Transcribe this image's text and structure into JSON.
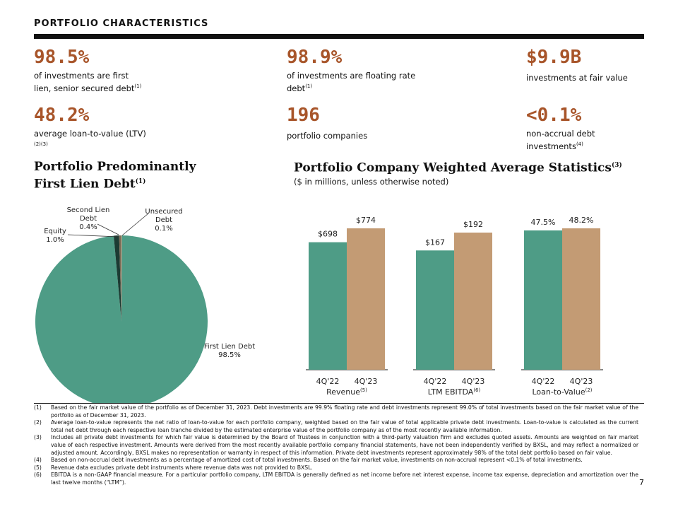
{
  "header": {
    "title": "PORTFOLIO CHARACTERISTICS"
  },
  "stats": [
    {
      "value": "98.5%",
      "desc": "of investments are first lien, senior secured debt",
      "sup": "(1)"
    },
    {
      "value": "98.9%",
      "desc": "of investments are floating rate debt",
      "sup": "(1)"
    },
    {
      "value": "$9.9B",
      "desc": "investments at fair value",
      "sup": ""
    },
    {
      "value": "48.2%",
      "desc": "average loan-to-value (LTV)",
      "sup": "(2)(3)"
    },
    {
      "value": "196",
      "desc": "portfolio companies",
      "sup": ""
    },
    {
      "value": "<0.1%",
      "desc": "non-accrual debt investments",
      "sup": "(4)"
    }
  ],
  "left_section": {
    "title_line1": "Portfolio Predominantly",
    "title_line2": "First Lien Debt",
    "sup": "(1)"
  },
  "right_section": {
    "title": "Portfolio Company Weighted Average Statistics",
    "sup": "(3)",
    "subtitle": "($ in millions, unless otherwise noted)"
  },
  "chart_data": [
    {
      "type": "pie",
      "slices": [
        {
          "label": "First Lien Debt",
          "value_label": "98.5%",
          "value": 98.5,
          "color": "#4e9c86"
        },
        {
          "label": "Equity",
          "value_label": "1.0%",
          "value": 1.0,
          "color": "#1c3b33"
        },
        {
          "label": "Second Lien Debt",
          "value_label": "0.4%",
          "value": 0.4,
          "color": "#7a6a55"
        },
        {
          "label": "Unsecured Debt",
          "value_label": "0.1%",
          "value": 0.1,
          "color": "#c9a37f"
        }
      ]
    },
    {
      "type": "bar",
      "categories": [
        "4Q'22",
        "4Q'23"
      ],
      "groups": [
        {
          "name": "Revenue",
          "sup": "(5)",
          "values": [
            698,
            774
          ],
          "labels": [
            "$698",
            "$774"
          ]
        },
        {
          "name": "LTM EBITDA",
          "sup": "(6)",
          "values": [
            167,
            192
          ],
          "labels": [
            "$167",
            "$192"
          ]
        },
        {
          "name": "Loan-to-Value",
          "sup": "(2)",
          "values": [
            47.5,
            48.2
          ],
          "labels": [
            "47.5%",
            "48.2%"
          ]
        }
      ],
      "colors": [
        "#4e9c86",
        "#c39b74"
      ]
    }
  ],
  "footnotes": [
    {
      "num": "(1)",
      "text": "Based on the fair market value of the portfolio as of December 31, 2023. Debt investments are 99.9% floating rate and debt investments represent 99.0% of total investments based on the fair market value of the portfolio as of December 31, 2023."
    },
    {
      "num": "(2)",
      "text": "Average loan-to-value represents the net ratio of loan-to-value for each portfolio company, weighted based on the fair value of total applicable private debt investments. Loan-to-value is calculated as the current total net debt through each respective loan tranche divided by the estimated enterprise value of the portfolio company as of the most recently available information."
    },
    {
      "num": "(3)",
      "text": "Includes all private debt investments for which fair value is determined by the Board of Trustees in conjunction with a third-party valuation firm and excludes quoted assets. Amounts are weighted on fair market value of each respective investment. Amounts were derived from the most recently available portfolio company financial statements, have not been independently verified by BXSL, and may reflect a normalized or adjusted amount. Accordingly, BXSL makes no representation or warranty in respect of this information. Private debt investments represent approximately 98% of the total debt portfolio based on fair value."
    },
    {
      "num": "(4)",
      "text": "Based on non-accrual debt investments as a percentage of amortized cost of total investments. Based on the fair market value, investments on non-accrual represent <0.1% of total investments."
    },
    {
      "num": "(5)",
      "text": "Revenue data excludes private debt instruments where revenue data was not provided to BXSL."
    },
    {
      "num": "(6)",
      "text": "EBITDA is a non-GAAP financial measure. For a particular portfolio company, LTM EBITDA is generally defined as net income before net interest expense, income tax expense, depreciation and amortization over the last twelve months (“LTM”)."
    }
  ],
  "page_number": "7"
}
